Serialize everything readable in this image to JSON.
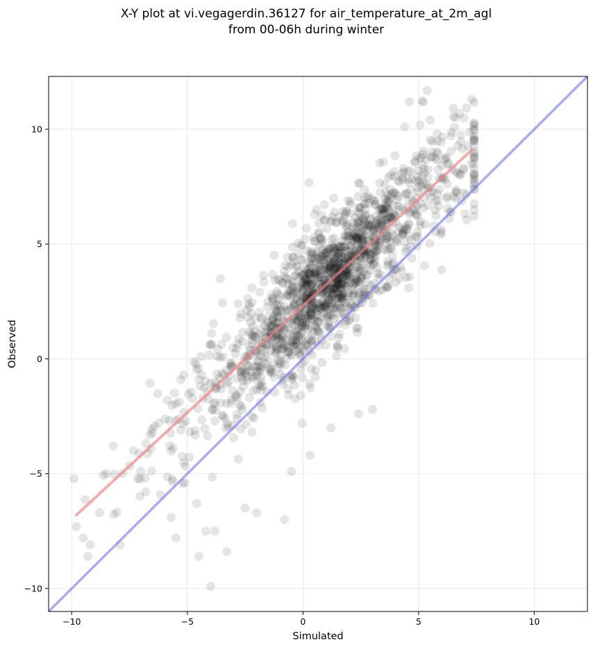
{
  "chart_data": {
    "type": "scatter",
    "title": "X-Y plot at vi.vegagerdin.36127 for air_temperature_at_2m_agl",
    "subtitle": "from 00-06h during winter",
    "xlabel": "Simulated",
    "ylabel": "Observed",
    "xlim": [
      -11,
      12.3
    ],
    "ylim": [
      -11,
      12.3
    ],
    "xticks": [
      -10,
      -5,
      0,
      5,
      10
    ],
    "yticks": [
      -10,
      -5,
      0,
      5,
      10
    ],
    "xtick_labels": [
      "−10",
      "−5",
      "0",
      "5",
      "10"
    ],
    "ytick_labels": [
      "−10",
      "−5",
      "0",
      "5",
      "10"
    ],
    "grid": true,
    "legend": "none",
    "colors": {
      "points": "#000000",
      "fit_line": "#f08080",
      "identity_line": "#7070ee"
    },
    "fit_line": {
      "x": [
        -9.8,
        7.3
      ],
      "y": [
        -6.8,
        9.1
      ]
    },
    "identity_line": {
      "x": [
        -11,
        12.3
      ],
      "y": [
        -11,
        12.3
      ]
    },
    "n_points": 1600,
    "points_summary": "dense cloud centred near (1, 4); approx observed = 0.93*simulated + 2.3 with noise",
    "sample_points": {
      "x": [
        -9.8,
        -9.5,
        -9.2,
        -9.3,
        -8.8,
        -8.5,
        -8.2,
        -7.9,
        -6.8,
        -5.7,
        -5.5,
        -4.6,
        -4.5,
        -4.2,
        -4.0,
        -3.8,
        -3.3,
        -2.5,
        -2.0,
        -0.8,
        -0.5,
        -0.1,
        0.3,
        1.2,
        2.4,
        3.0,
        4.4,
        4.6,
        5.5,
        5.8,
        6.6,
        6.8,
        7.3
      ],
      "y": [
        -7.3,
        -7.8,
        -8.1,
        -8.6,
        -6.7,
        -5.0,
        -3.8,
        -8.1,
        -5.8,
        -6.9,
        -7.8,
        -6.3,
        -8.6,
        -7.5,
        -9.9,
        -7.5,
        -8.4,
        -6.5,
        -6.7,
        -7.0,
        -4.9,
        -1.6,
        -4.2,
        -3.0,
        -2.4,
        -2.2,
        10.1,
        11.2,
        10.4,
        9.8,
        10.5,
        8.0,
        11.3
      ]
    }
  }
}
